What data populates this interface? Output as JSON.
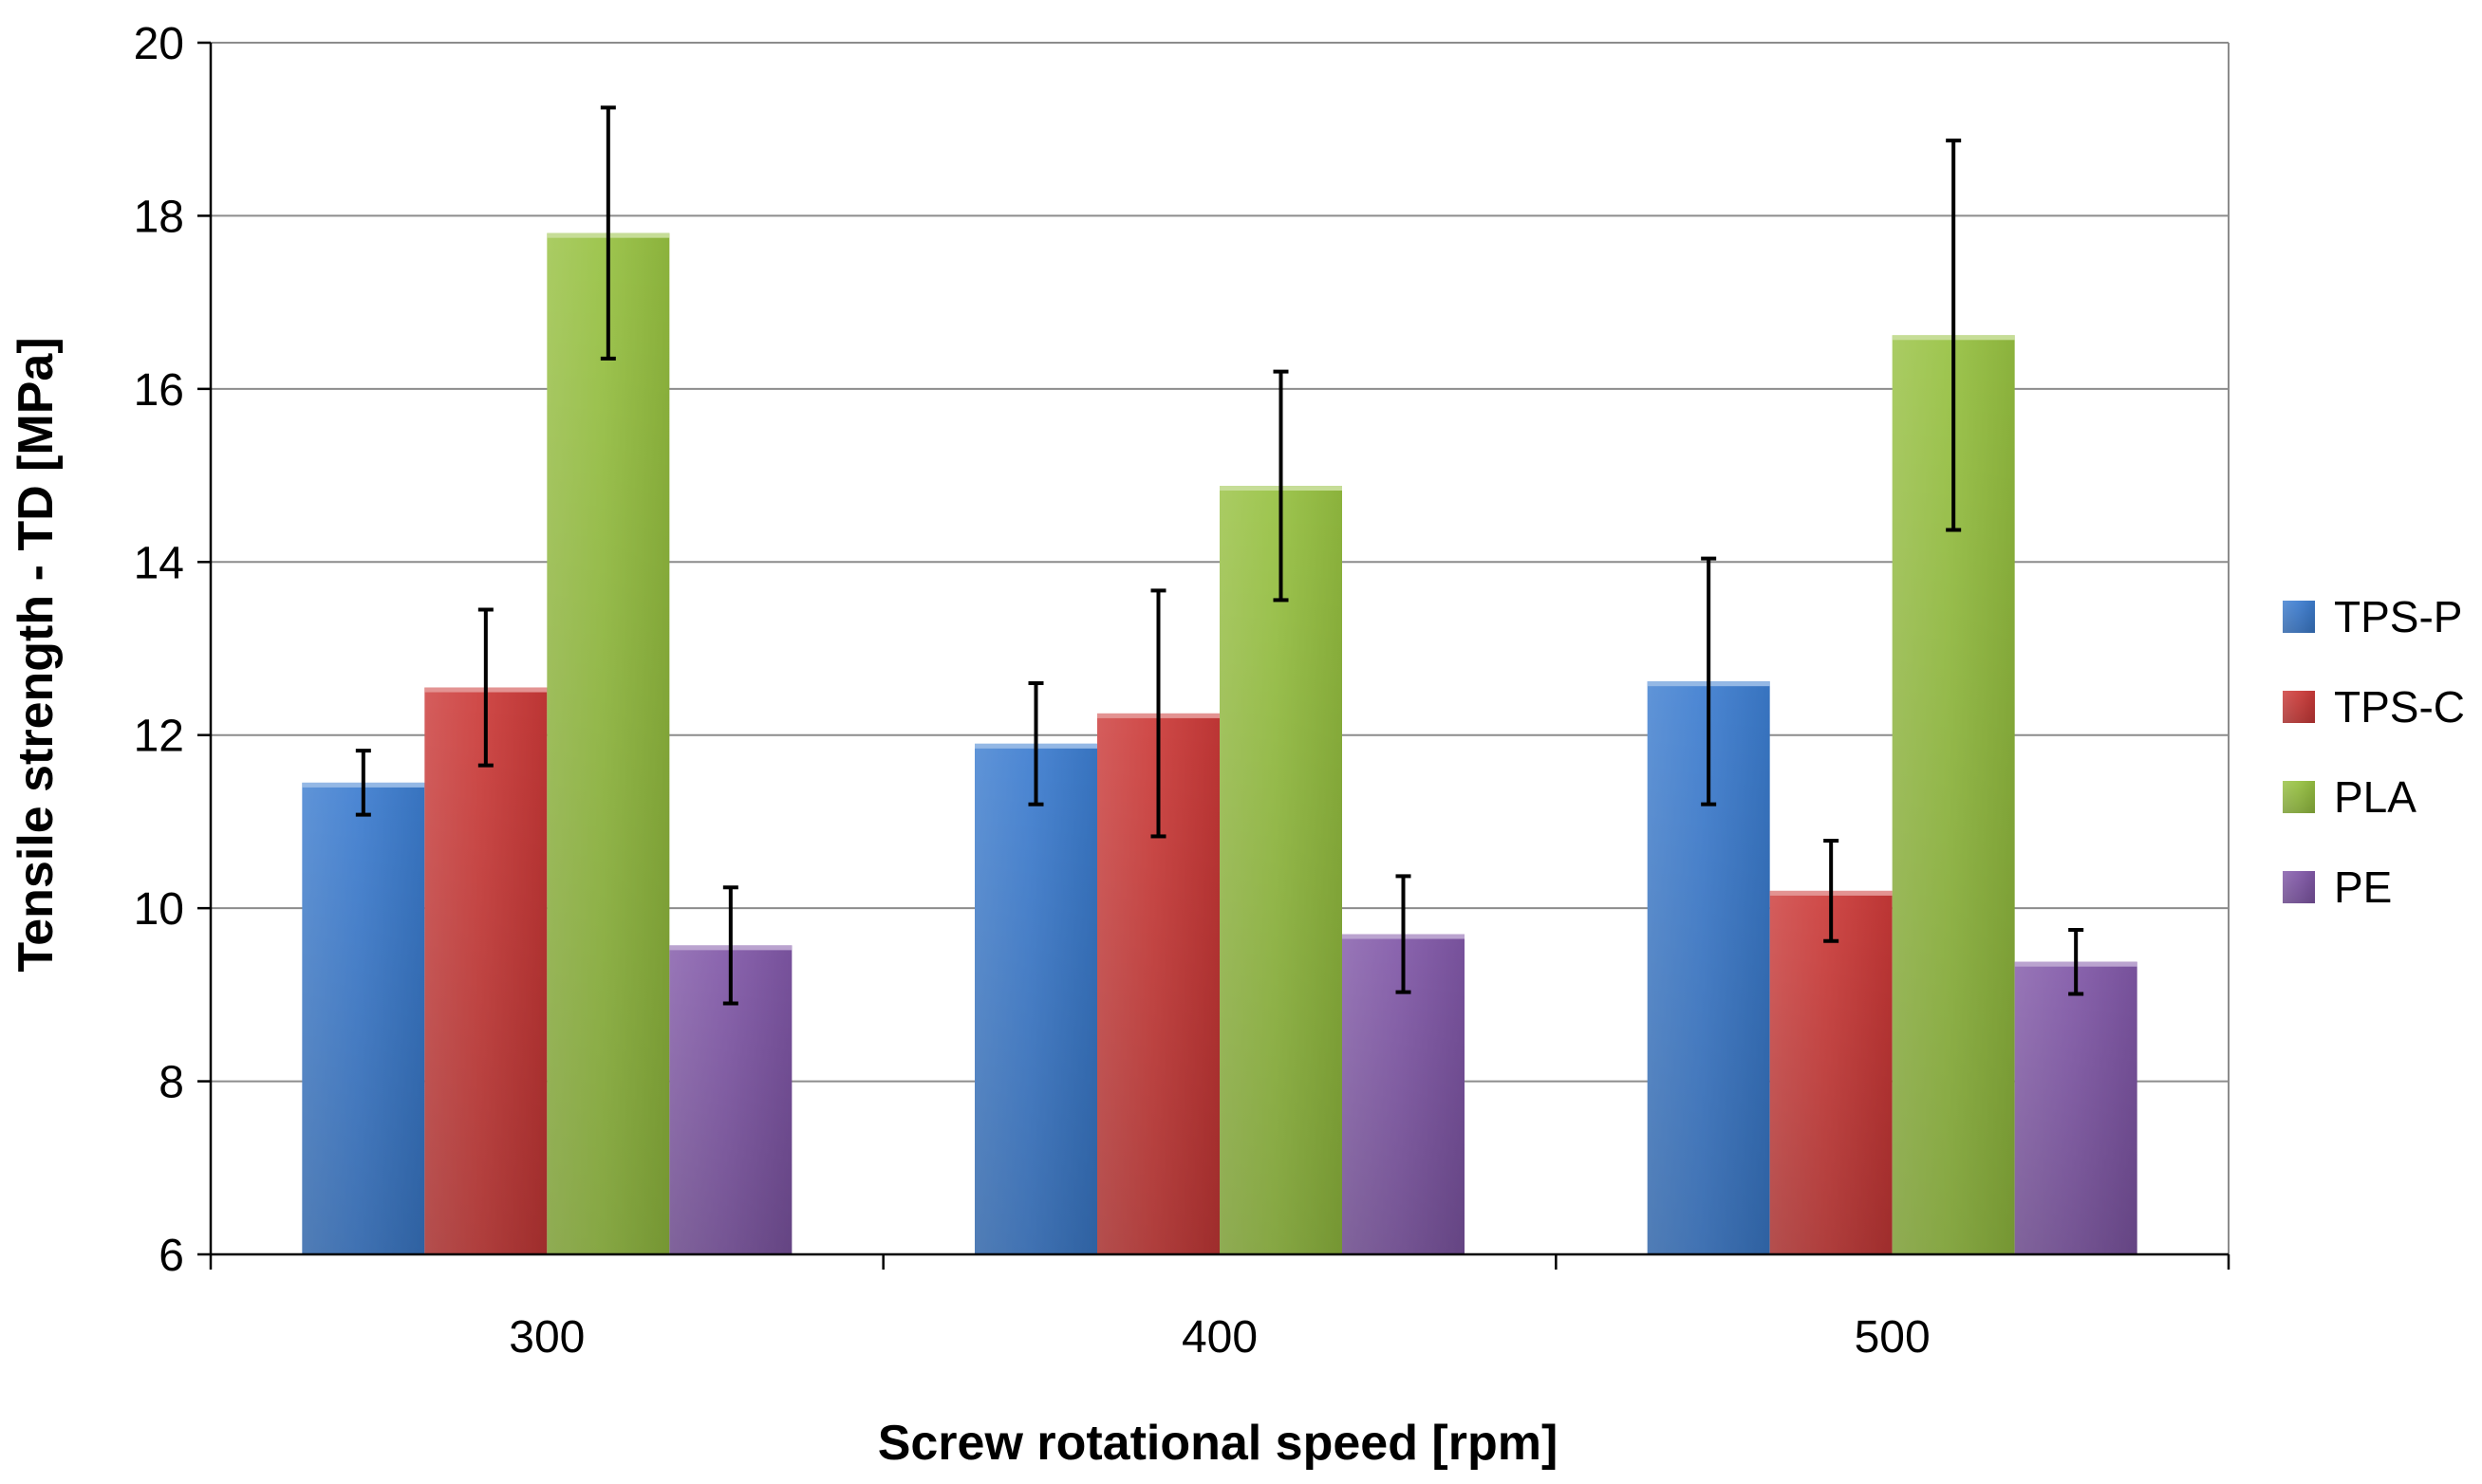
{
  "chart_data": {
    "type": "bar",
    "title": "",
    "xlabel": "Screw rotational speed [rpm]",
    "ylabel": "Tensile strength  - TD [MPa]",
    "categories": [
      "300",
      "400",
      "500"
    ],
    "ylim": [
      6,
      20
    ],
    "yticks": [
      6,
      8,
      10,
      12,
      14,
      16,
      18,
      20
    ],
    "grid": true,
    "legend_position": "right",
    "series": [
      {
        "name": "TPS-P",
        "color": "#3C7DD0",
        "values": [
          11.45,
          11.9,
          12.62
        ],
        "errors": [
          0.37,
          0.7,
          1.42
        ]
      },
      {
        "name": "TPS-C",
        "color": "#CC3A38",
        "values": [
          12.55,
          12.25,
          10.2
        ],
        "errors": [
          0.9,
          1.42,
          0.58
        ]
      },
      {
        "name": "PLA",
        "color": "#97C141",
        "values": [
          17.8,
          14.88,
          16.62
        ],
        "errors": [
          1.45,
          1.32,
          2.25
        ]
      },
      {
        "name": "PE",
        "color": "#8158A8",
        "values": [
          9.57,
          9.7,
          9.38
        ],
        "errors": [
          0.67,
          0.67,
          0.37
        ]
      }
    ]
  }
}
